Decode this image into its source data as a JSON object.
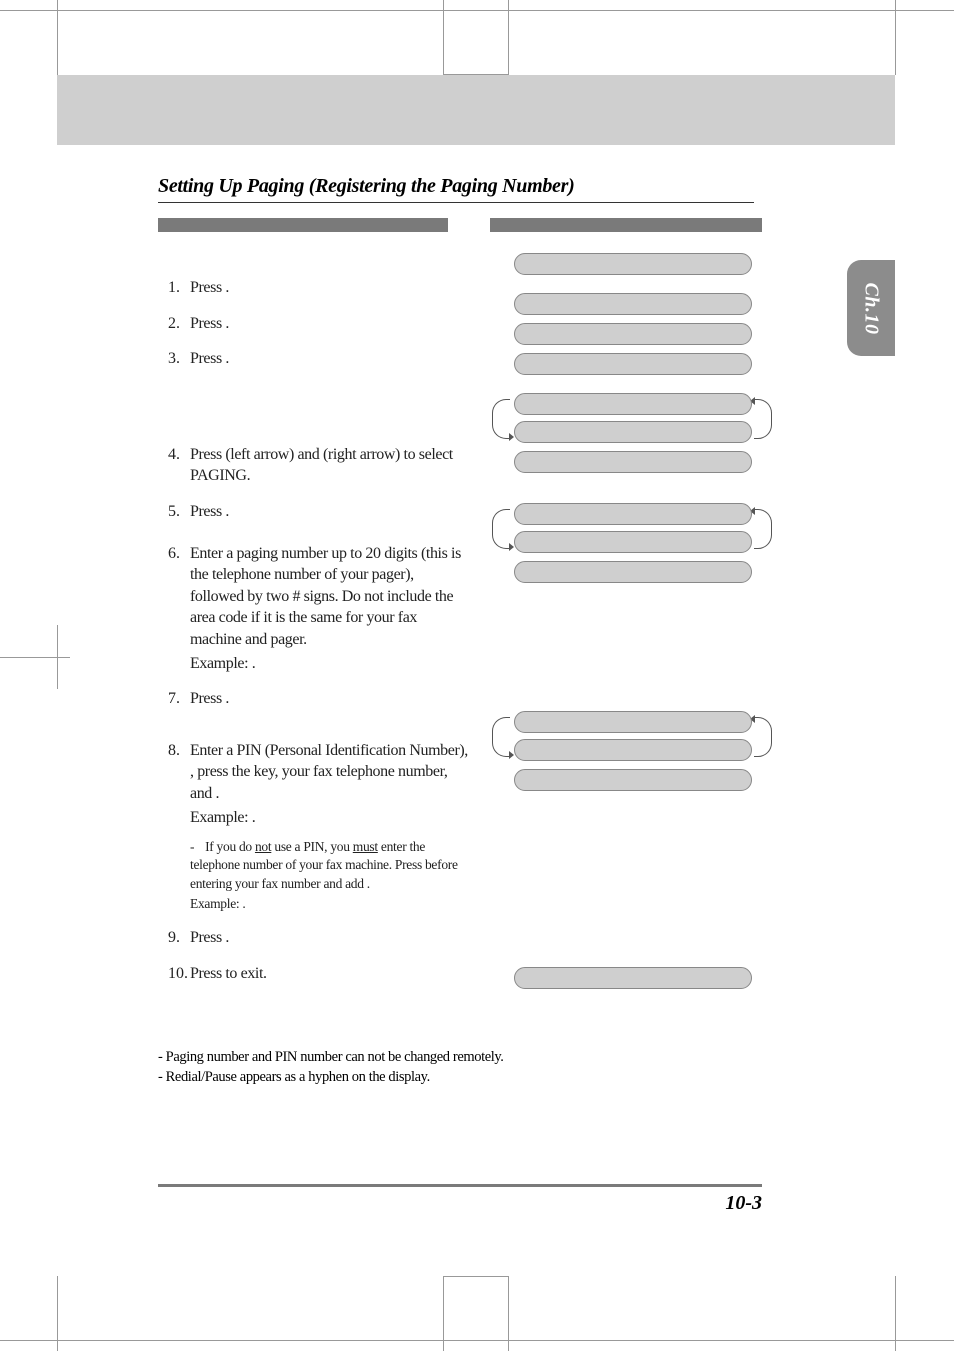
{
  "chapter_tab": "Ch.10",
  "section_title": "Setting Up Paging (Registering the Paging Number)",
  "steps": {
    "s1": "Press               .",
    "s2": "Press   .",
    "s3": "Press   .",
    "s4": "Press    (left arrow) and    (right arrow) to select PAGING.",
    "s5": "Press       .",
    "s6": "Enter a paging number up to 20 digits (this is the telephone number of your pager), followed by two # signs. Do not include the area code if it is the same for your fax machine and pager.",
    "s6_example": "Example:                         .",
    "s7": "Press       .",
    "s8a": "Enter a PIN (Personal Identification Number),    ,  press  the",
    "s8b": "           key, your fax telephone number, and    .",
    "s8_example": "Example:                                   .",
    "s8_sub1a": "If you do ",
    "s8_sub1_not": "not",
    "s8_sub1b": " use a PIN, you ",
    "s8_sub1_must": "must",
    "s8_sub1c": " enter the telephone number of your fax machine. Press                    before entering your fax number and add    .",
    "s8_sub_example": "Example:                            .",
    "s9": "Press       .",
    "s10": "Press         to exit."
  },
  "notes": {
    "n1": "- Paging number and PIN number can not be changed remotely.",
    "n2": "- Redial/Pause appears as a hyphen on the display."
  },
  "page_number": "10-3",
  "colors": {
    "band": "#cfcfcf",
    "bar": "#7a7a7a",
    "tab": "#8c8c8c",
    "lozenge_fill": "#cfcfcf",
    "lozenge_border": "#888888",
    "text": "#222222"
  }
}
